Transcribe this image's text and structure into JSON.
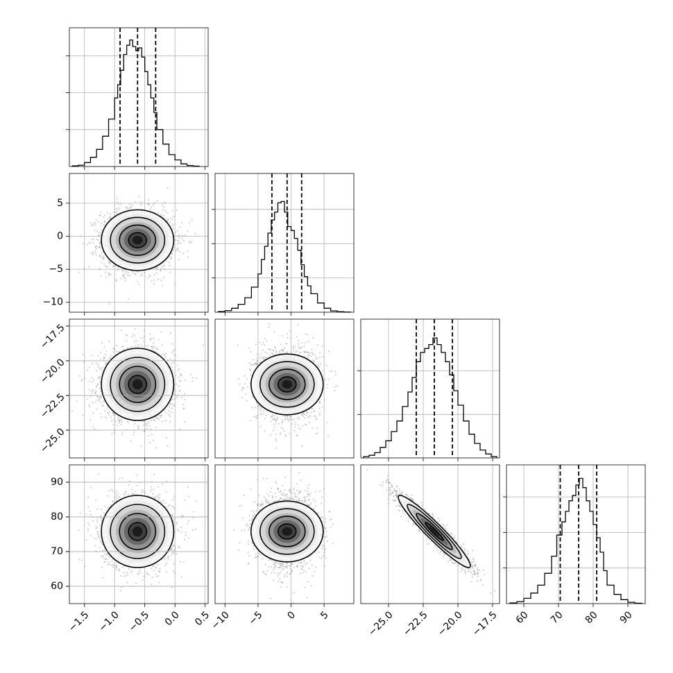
{
  "chart_data": {
    "type": "corner",
    "title": "",
    "colors": {
      "ink": "#000000",
      "grid": "#b0b0b0",
      "points": "#9a9a9a",
      "background": "#ffffff"
    },
    "parameters": [
      {
        "index": 0,
        "range": [
          -1.75,
          0.55
        ],
        "ticks": [
          -1.5,
          -1.0,
          -0.5,
          0.0,
          0.5
        ],
        "tick_labels": [
          "−1.5",
          "−1.0",
          "−0.5",
          "0.0",
          "0.5"
        ],
        "quantiles": [
          -0.91,
          -0.62,
          -0.32
        ],
        "mean": -0.62,
        "std": 0.3
      },
      {
        "index": 1,
        "range": [
          -11.5,
          9.5
        ],
        "ticks": [
          -10,
          -5,
          0,
          5
        ],
        "tick_labels": [
          "−10",
          "−5",
          "0",
          "5"
        ],
        "quantiles": [
          -2.9,
          -0.6,
          1.6
        ],
        "mean": -0.6,
        "std": 2.3
      },
      {
        "index": 2,
        "range": [
          -27.0,
          -17.0
        ],
        "ticks": [
          -25.0,
          -22.5,
          -20.0,
          -17.5
        ],
        "tick_labels": [
          "−25.0",
          "−22.5",
          "−20.0",
          "−17.5"
        ],
        "quantiles": [
          -23.0,
          -21.7,
          -20.4
        ],
        "mean": -21.7,
        "std": 1.3
      },
      {
        "index": 3,
        "range": [
          55.0,
          95.0
        ],
        "ticks": [
          60,
          70,
          80,
          90
        ],
        "tick_labels": [
          "60",
          "70",
          "80",
          "90"
        ],
        "quantiles": [
          70.5,
          75.8,
          81.0
        ],
        "mean": 75.8,
        "std": 5.2
      }
    ],
    "histograms": [
      {
        "param": 0,
        "y_max": 1.0,
        "bin_edges": [
          -1.7,
          -1.6,
          -1.5,
          -1.4,
          -1.3,
          -1.2,
          -1.1,
          -1.0,
          -0.95,
          -0.9,
          -0.85,
          -0.8,
          -0.75,
          -0.7,
          -0.65,
          -0.6,
          -0.55,
          -0.5,
          -0.45,
          -0.4,
          -0.35,
          -0.3,
          -0.2,
          -0.1,
          0.0,
          0.1,
          0.2,
          0.3,
          0.4
        ],
        "counts": [
          0.005,
          0.01,
          0.03,
          0.07,
          0.13,
          0.23,
          0.36,
          0.52,
          0.62,
          0.73,
          0.85,
          0.92,
          0.96,
          0.91,
          0.88,
          0.9,
          0.83,
          0.72,
          0.62,
          0.52,
          0.41,
          0.28,
          0.17,
          0.09,
          0.05,
          0.02,
          0.008,
          0.003
        ],
        "hidden_y_ticks": [
          0.28,
          0.56,
          0.84
        ]
      },
      {
        "param": 1,
        "y_max": 1.0,
        "bin_edges": [
          -11,
          -10,
          -9,
          -8,
          -7,
          -6,
          -5,
          -4.5,
          -4,
          -3.5,
          -3,
          -2.5,
          -2,
          -1.5,
          -1,
          -0.5,
          0,
          0.5,
          1,
          1.5,
          2,
          2.5,
          3,
          4,
          5,
          6,
          7,
          8,
          9
        ],
        "counts": [
          0.005,
          0.012,
          0.03,
          0.06,
          0.11,
          0.19,
          0.29,
          0.4,
          0.5,
          0.6,
          0.7,
          0.76,
          0.83,
          0.84,
          0.76,
          0.65,
          0.62,
          0.56,
          0.47,
          0.36,
          0.27,
          0.2,
          0.14,
          0.07,
          0.03,
          0.01,
          0.004,
          0.001
        ],
        "hidden_y_ticks": [
          0.26,
          0.52,
          0.78
        ]
      },
      {
        "param": 2,
        "y_max": 1.0,
        "bin_edges": [
          -26.8,
          -26.4,
          -26.0,
          -25.6,
          -25.2,
          -24.8,
          -24.4,
          -24.0,
          -23.6,
          -23.3,
          -23.0,
          -22.7,
          -22.4,
          -22.1,
          -21.8,
          -21.5,
          -21.2,
          -20.9,
          -20.6,
          -20.3,
          -20.0,
          -19.6,
          -19.2,
          -18.8,
          -18.4,
          -18.0,
          -17.6,
          -17.2
        ],
        "counts": [
          0.01,
          0.02,
          0.04,
          0.08,
          0.13,
          0.2,
          0.28,
          0.39,
          0.5,
          0.61,
          0.73,
          0.8,
          0.83,
          0.86,
          0.91,
          0.86,
          0.8,
          0.73,
          0.63,
          0.51,
          0.4,
          0.28,
          0.18,
          0.11,
          0.06,
          0.03,
          0.01
        ],
        "hidden_y_ticks": [
          0.33,
          0.66
        ]
      },
      {
        "param": 3,
        "y_max": 1.0,
        "bin_edges": [
          56,
          58,
          60,
          62,
          64,
          66,
          68,
          69.5,
          71,
          72,
          73,
          74,
          75,
          76,
          77,
          78,
          79,
          80,
          81,
          82,
          83,
          84,
          86,
          88,
          90,
          92,
          94
        ],
        "counts": [
          0.005,
          0.015,
          0.04,
          0.08,
          0.14,
          0.23,
          0.36,
          0.52,
          0.62,
          0.7,
          0.78,
          0.82,
          0.9,
          0.95,
          0.88,
          0.78,
          0.7,
          0.6,
          0.5,
          0.39,
          0.25,
          0.14,
          0.07,
          0.03,
          0.01,
          0.003
        ],
        "hidden_y_ticks": [
          0.27,
          0.54,
          0.81
        ]
      }
    ],
    "pairs": [
      {
        "x_param": 0,
        "y_param": 1,
        "correlation": 0.0,
        "n_points": 2200
      },
      {
        "x_param": 0,
        "y_param": 2,
        "correlation": 0.0,
        "n_points": 2200
      },
      {
        "x_param": 1,
        "y_param": 2,
        "correlation": 0.0,
        "n_points": 2200
      },
      {
        "x_param": 0,
        "y_param": 3,
        "correlation": 0.0,
        "n_points": 2200
      },
      {
        "x_param": 1,
        "y_param": 3,
        "correlation": 0.0,
        "n_points": 2200
      },
      {
        "x_param": 2,
        "y_param": 3,
        "correlation": -0.95,
        "n_points": 2200
      }
    ],
    "contour_sigmas": [
      0.5,
      1.0,
      1.5,
      2.0
    ],
    "grid": true,
    "legend": "none"
  }
}
